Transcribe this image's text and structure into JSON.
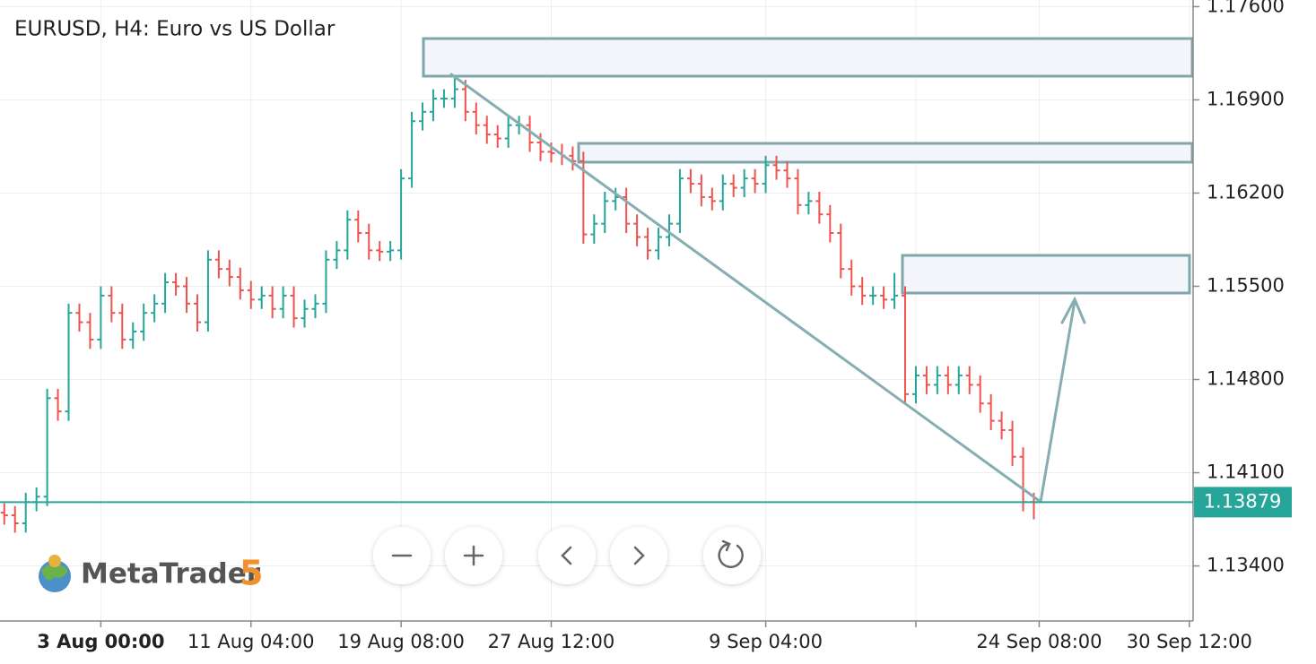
{
  "chart_data": {
    "type": "ohlc",
    "title": "EURUSD, H4: Euro vs US Dollar",
    "watermark": "MetaTrader",
    "watermark_version": "5",
    "up_color": "#26a69a",
    "down_color": "#ef5350",
    "last_price": {
      "value": 1.13879,
      "label": "1.13879"
    },
    "ylim": [
      1.13,
      1.1765
    ],
    "yticks": [
      {
        "value": 1.134,
        "label": "1.13400"
      },
      {
        "value": 1.141,
        "label": "1.14100"
      },
      {
        "value": 1.148,
        "label": "1.14800"
      },
      {
        "value": 1.155,
        "label": "1.15500"
      },
      {
        "value": 1.162,
        "label": "1.16200"
      },
      {
        "value": 1.169,
        "label": "1.16900"
      },
      {
        "value": 1.176,
        "label": "1.17600"
      }
    ],
    "xlim": [
      -0.4,
      110.6
    ],
    "xticks": [
      {
        "value": 9,
        "label": "3 Aug 00:00"
      },
      {
        "value": 23,
        "label": "11 Aug 04:00"
      },
      {
        "value": 37,
        "label": "19 Aug 08:00"
      },
      {
        "value": 51,
        "label": "27 Aug 12:00"
      },
      {
        "value": 71,
        "label": "9 Sep 04:00"
      },
      {
        "value": 85,
        "label": null
      },
      {
        "value": 96.5,
        "label": "24 Sep 08:00"
      },
      {
        "value": 110.5,
        "label": "30 Sep 12:00"
      }
    ],
    "grid": true,
    "open": [
      1.138,
      1.1378,
      1.1372,
      1.1388,
      1.1392,
      1.1466,
      1.1456,
      1.153,
      1.1523,
      1.151,
      1.1543,
      1.153,
      1.151,
      1.1516,
      1.153,
      1.1537,
      1.1553,
      1.155,
      1.1537,
      1.1523,
      1.157,
      1.1563,
      1.1557,
      1.1547,
      1.154,
      1.1543,
      1.1533,
      1.1543,
      1.1526,
      1.1533,
      1.1537,
      1.157,
      1.1577,
      1.16,
      1.159,
      1.1577,
      1.1576,
      1.1577,
      1.1631,
      1.1674,
      1.1681,
      1.1691,
      1.1691,
      1.1698,
      1.1681,
      1.1671,
      1.1664,
      1.1661,
      1.1671,
      1.1671,
      1.1658,
      1.1651,
      1.165,
      1.1648,
      1.1644,
      1.1589,
      1.1597,
      1.1614,
      1.1617,
      1.1597,
      1.1587,
      1.1577,
      1.1587,
      1.1597,
      1.1631,
      1.1627,
      1.1617,
      1.1614,
      1.1627,
      1.1624,
      1.1631,
      1.1627,
      1.1641,
      1.1637,
      1.1631,
      1.1611,
      1.1614,
      1.1604,
      1.159,
      1.1563,
      1.155,
      1.1543,
      1.1543,
      1.154,
      1.1543,
      1.1469,
      1.1483,
      1.1476,
      1.1483,
      1.1476,
      1.1483,
      1.1476,
      1.1462,
      1.1449,
      1.1442,
      1.1422,
      1.1388
    ],
    "high": [
      1.1387,
      1.1385,
      1.1395,
      1.1399,
      1.1473,
      1.1473,
      1.1537,
      1.1537,
      1.153,
      1.155,
      1.155,
      1.1537,
      1.1523,
      1.1537,
      1.1544,
      1.156,
      1.156,
      1.1557,
      1.1544,
      1.1577,
      1.1577,
      1.157,
      1.1564,
      1.1554,
      1.155,
      1.155,
      1.155,
      1.155,
      1.154,
      1.1544,
      1.1577,
      1.1584,
      1.1607,
      1.1607,
      1.1597,
      1.1584,
      1.1584,
      1.1638,
      1.1681,
      1.1688,
      1.1698,
      1.1698,
      1.1708,
      1.1705,
      1.1688,
      1.1678,
      1.1671,
      1.1678,
      1.1678,
      1.1678,
      1.1665,
      1.1658,
      1.1657,
      1.1655,
      1.1651,
      1.1604,
      1.1621,
      1.1624,
      1.1624,
      1.1604,
      1.1594,
      1.1594,
      1.1604,
      1.1638,
      1.1638,
      1.1634,
      1.1624,
      1.1634,
      1.1634,
      1.1638,
      1.1638,
      1.1648,
      1.1648,
      1.1644,
      1.1638,
      1.1621,
      1.1621,
      1.1611,
      1.1597,
      1.157,
      1.1557,
      1.155,
      1.155,
      1.156,
      1.155,
      1.149,
      1.149,
      1.149,
      1.149,
      1.149,
      1.149,
      1.1483,
      1.1469,
      1.1456,
      1.1449,
      1.1429,
      1.1395
    ],
    "low": [
      1.1371,
      1.1365,
      1.1365,
      1.1381,
      1.1385,
      1.1449,
      1.1449,
      1.1516,
      1.1503,
      1.1503,
      1.1523,
      1.1503,
      1.1503,
      1.1509,
      1.1523,
      1.153,
      1.1543,
      1.153,
      1.1516,
      1.1516,
      1.1556,
      1.155,
      1.154,
      1.1533,
      1.1533,
      1.1526,
      1.1526,
      1.1519,
      1.1519,
      1.1526,
      1.153,
      1.1563,
      1.157,
      1.1583,
      1.157,
      1.1569,
      1.1569,
      1.157,
      1.1624,
      1.1667,
      1.1674,
      1.1684,
      1.1684,
      1.1674,
      1.1664,
      1.1657,
      1.1654,
      1.1654,
      1.1664,
      1.1651,
      1.1644,
      1.1643,
      1.1641,
      1.1637,
      1.1582,
      1.1582,
      1.159,
      1.1607,
      1.159,
      1.158,
      1.157,
      1.157,
      1.158,
      1.159,
      1.162,
      1.161,
      1.1607,
      1.1607,
      1.1617,
      1.1617,
      1.162,
      1.162,
      1.163,
      1.1624,
      1.1604,
      1.1604,
      1.1597,
      1.1583,
      1.1556,
      1.1543,
      1.1536,
      1.1536,
      1.1533,
      1.1533,
      1.1462,
      1.1462,
      1.1469,
      1.1469,
      1.1469,
      1.1469,
      1.1469,
      1.1455,
      1.1442,
      1.1435,
      1.1415,
      1.1381,
      1.1375
    ],
    "close": [
      1.1378,
      1.1372,
      1.1388,
      1.1392,
      1.1466,
      1.1456,
      1.153,
      1.1523,
      1.151,
      1.1543,
      1.153,
      1.151,
      1.1516,
      1.153,
      1.1537,
      1.1553,
      1.155,
      1.1537,
      1.1523,
      1.157,
      1.1563,
      1.1557,
      1.1547,
      1.154,
      1.1543,
      1.1533,
      1.1543,
      1.1526,
      1.1533,
      1.1537,
      1.157,
      1.1577,
      1.16,
      1.159,
      1.1577,
      1.1576,
      1.1577,
      1.1631,
      1.1674,
      1.1681,
      1.1691,
      1.1691,
      1.1698,
      1.1681,
      1.1671,
      1.1664,
      1.1661,
      1.1671,
      1.1671,
      1.1658,
      1.1651,
      1.165,
      1.1648,
      1.1644,
      1.1589,
      1.1597,
      1.1614,
      1.1617,
      1.1597,
      1.1587,
      1.1577,
      1.1587,
      1.1597,
      1.1631,
      1.1627,
      1.1617,
      1.1614,
      1.1627,
      1.1624,
      1.1631,
      1.1627,
      1.1641,
      1.1637,
      1.1631,
      1.1611,
      1.1614,
      1.1604,
      1.159,
      1.1563,
      1.155,
      1.1543,
      1.1543,
      1.154,
      1.1543,
      1.1469,
      1.1483,
      1.1476,
      1.1483,
      1.1476,
      1.1483,
      1.1476,
      1.1462,
      1.1449,
      1.1442,
      1.1422,
      1.1388,
      1.13879
    ]
  }
}
